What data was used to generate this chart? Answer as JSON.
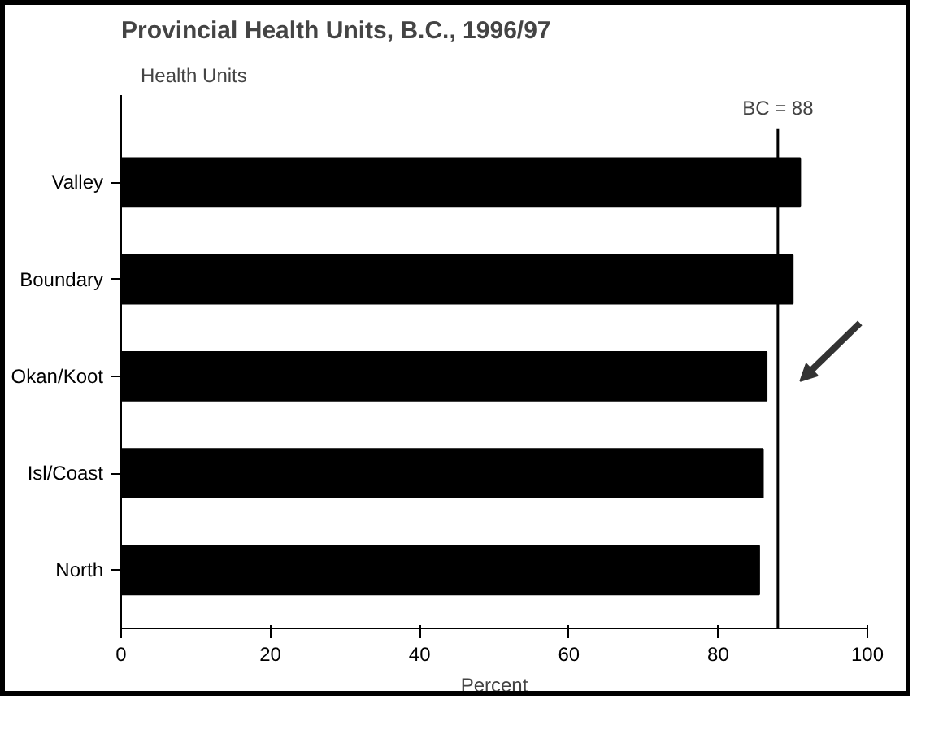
{
  "chart_data": {
    "type": "bar",
    "orientation": "horizontal",
    "title": "Provincial Health Units, B.C., 1996/97",
    "categories": [
      "Valley",
      "Boundary",
      "Okan/Koot",
      "Isl/Coast",
      "North"
    ],
    "values": [
      91,
      90,
      86.5,
      86,
      85.5
    ],
    "color": "#000000",
    "xlabel": "Percent",
    "ylabel": "Health Units",
    "xlim": [
      0,
      100
    ],
    "xticks": [
      0,
      20,
      40,
      60,
      80,
      100
    ],
    "grid": false,
    "ref_lines": [
      {
        "axis": "x",
        "value": 88,
        "label": "BC = 88",
        "color": "#000000"
      }
    ]
  }
}
